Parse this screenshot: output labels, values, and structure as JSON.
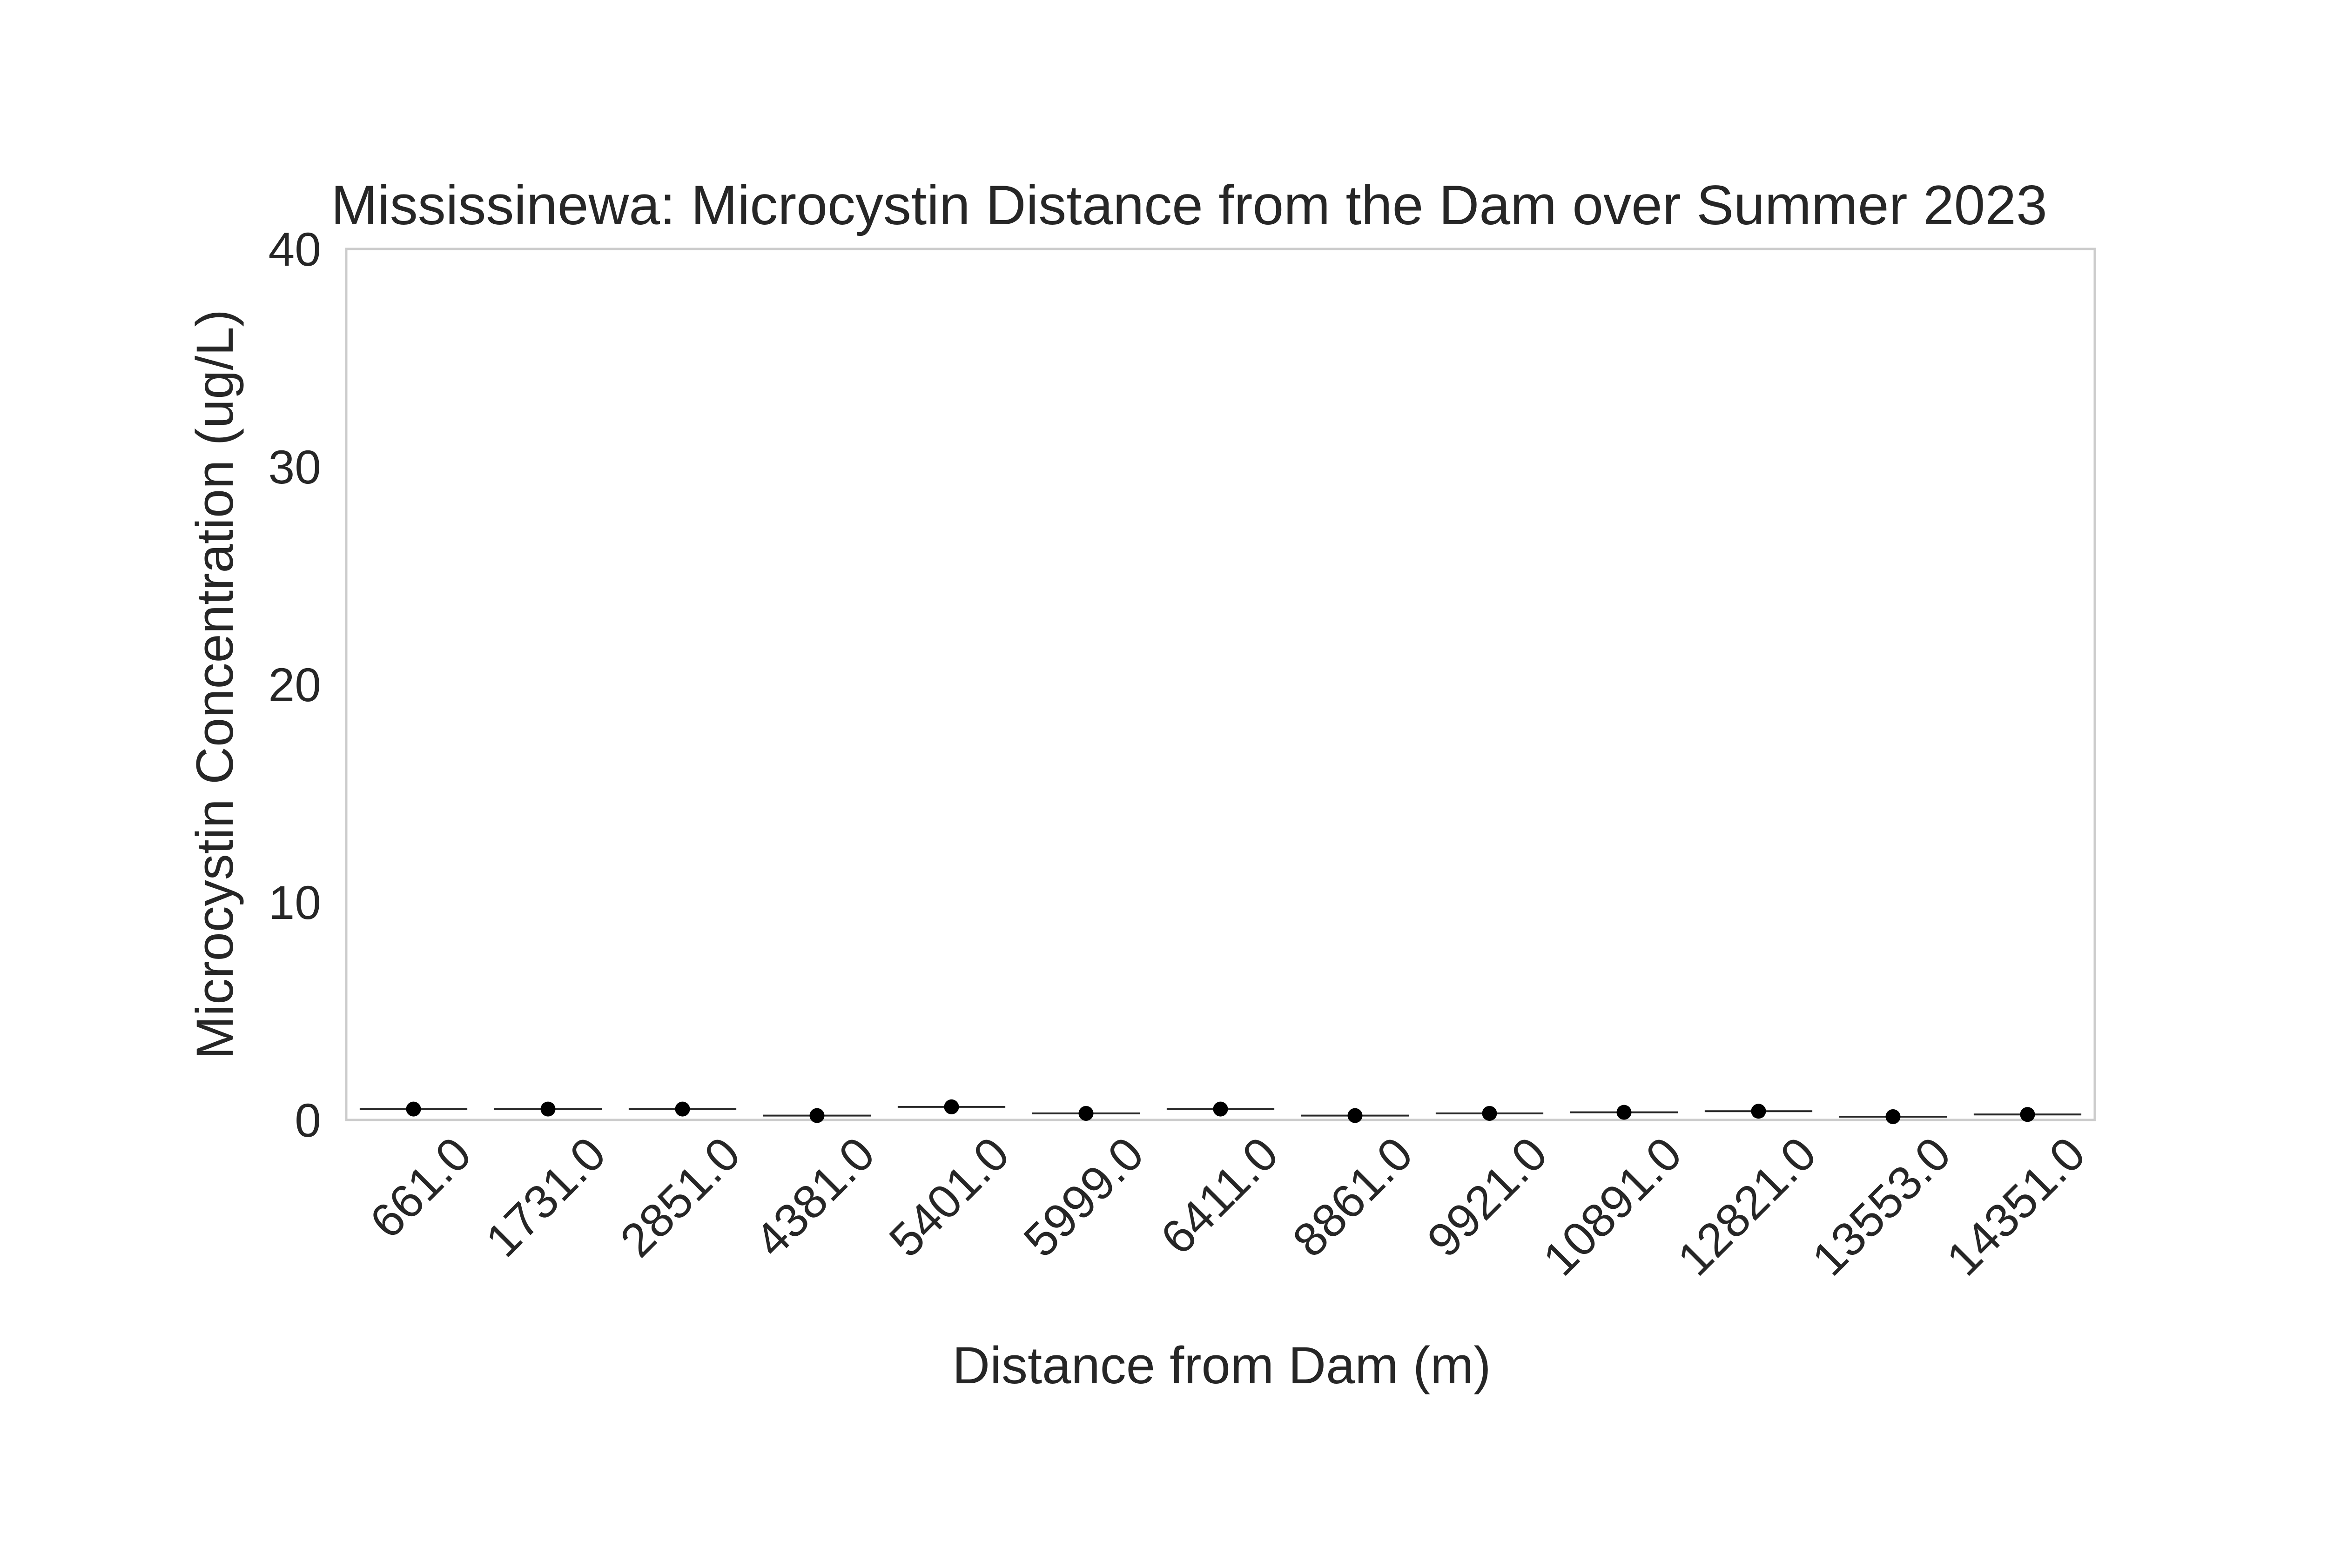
{
  "chart_data": {
    "type": "box",
    "title": "Mississinewa: Microcystin Distance from the Dam over Summer 2023",
    "xlabel": "Distance from Dam (m)",
    "ylabel": "Microcystin Concentration (ug/L)",
    "ylim": [
      0,
      40
    ],
    "y_ticks": [
      "0",
      "10",
      "20",
      "30",
      "40"
    ],
    "grid": false,
    "categories": [
      "661.0",
      "1731.0",
      "2851.0",
      "4381.0",
      "5401.0",
      "5999.0",
      "6411.0",
      "8861.0",
      "9921.0",
      "10891.0",
      "12821.0",
      "13553.0",
      "14351.0"
    ],
    "values": [
      0.5,
      0.5,
      0.5,
      0.2,
      0.6,
      0.3,
      0.5,
      0.2,
      0.3,
      0.35,
      0.4,
      0.15,
      0.25
    ],
    "marker": "mean",
    "colors": {
      "box_line": "#262626",
      "marker": "#000000",
      "frame": "#cccccc"
    }
  }
}
